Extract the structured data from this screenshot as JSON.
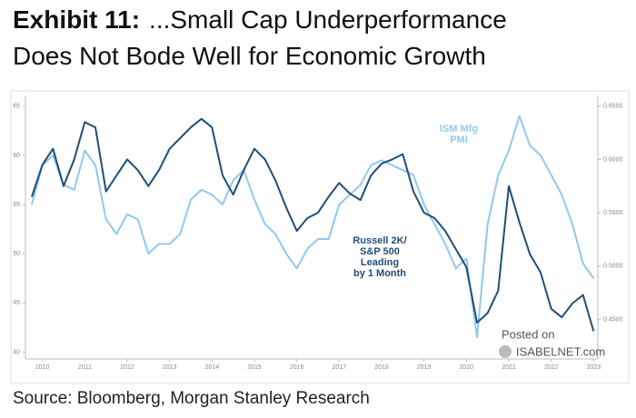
{
  "chart_data": {
    "type": "line",
    "exhibit": "Exhibit 11:",
    "title": [
      "...Small Cap Underperformance",
      "Does Not Bode Well for Economic Growth"
    ],
    "source": "Source: Bloomberg, Morgan Stanley Research",
    "x": [
      2009.75,
      2010,
      2010.25,
      2010.5,
      2010.75,
      2011,
      2011.25,
      2011.5,
      2011.75,
      2012,
      2012.25,
      2012.5,
      2012.75,
      2013,
      2013.25,
      2013.5,
      2013.75,
      2014,
      2014.25,
      2014.5,
      2014.75,
      2015,
      2015.25,
      2015.5,
      2015.75,
      2016,
      2016.25,
      2016.5,
      2016.75,
      2017,
      2017.25,
      2017.5,
      2017.75,
      2018,
      2018.25,
      2018.5,
      2018.75,
      2019,
      2019.25,
      2019.5,
      2019.75,
      2020,
      2020.25,
      2020.5,
      2020.75,
      2021,
      2021.25,
      2021.5,
      2021.75,
      2022,
      2022.25,
      2022.5,
      2022.75,
      2023
    ],
    "series": [
      {
        "name": "ISM Mfg PMI",
        "color": "#92c8ec",
        "values": [
          55,
          59,
          60,
          57,
          56.5,
          60.5,
          59,
          53.5,
          52,
          54,
          53.5,
          50,
          51,
          51,
          52,
          55.5,
          56.5,
          56,
          55,
          57.5,
          58.5,
          55.5,
          53,
          52,
          50,
          48.5,
          50.5,
          51.5,
          51.5,
          55,
          56,
          57,
          59,
          59.5,
          59,
          58.5,
          58,
          55,
          53,
          51,
          48.5,
          49.5,
          41.5,
          53,
          58,
          60.5,
          64,
          61,
          60,
          58,
          56,
          53,
          49,
          47.5
        ]
      },
      {
        "name": "Russell 2K/ S&P 500 Leading by 1 Month",
        "color": "#1f4e79",
        "axis": "y2",
        "values": [
          0.565,
          0.595,
          0.61,
          0.575,
          0.6,
          0.635,
          0.63,
          0.57,
          0.585,
          0.6,
          0.59,
          0.575,
          0.59,
          0.61,
          0.62,
          0.63,
          0.638,
          0.63,
          0.585,
          0.567,
          0.59,
          0.61,
          0.6,
          0.58,
          0.555,
          0.533,
          0.545,
          0.55,
          0.565,
          0.578,
          0.568,
          0.562,
          0.585,
          0.596,
          0.6,
          0.605,
          0.57,
          0.55,
          0.545,
          0.533,
          0.516,
          0.499,
          0.447,
          0.456,
          0.477,
          0.575,
          0.541,
          0.511,
          0.494,
          0.46,
          0.452,
          0.465,
          0.473,
          0.439
        ]
      }
    ],
    "annotations": [
      [
        "ISM Mfg",
        "PMI"
      ],
      [
        "Russell 2K/",
        "S&P 500",
        "Leading",
        "by 1 Month"
      ]
    ],
    "watermark": [
      "Posted on",
      "ISABELNET.com"
    ],
    "xlim": [
      2009.6,
      2023.1
    ],
    "xticks": [
      2010,
      2011,
      2012,
      2013,
      2014,
      2015,
      2016,
      2017,
      2018,
      2019,
      2020,
      2021,
      2022,
      2023
    ],
    "ylim": [
      39.3,
      66.1
    ],
    "yticks": [
      40,
      45,
      50,
      55,
      60,
      65
    ],
    "y2lim": [
      0.413,
      0.66
    ],
    "y2ticks": [
      {
        "value": 0.45,
        "label": "0.4500"
      },
      {
        "value": 0.5,
        "label": "0.5000"
      },
      {
        "value": 0.55,
        "label": "0.5500"
      },
      {
        "value": 0.6,
        "label": "0.6000"
      },
      {
        "value": 0.65,
        "label": "0.6500"
      }
    ],
    "grid": false
  }
}
